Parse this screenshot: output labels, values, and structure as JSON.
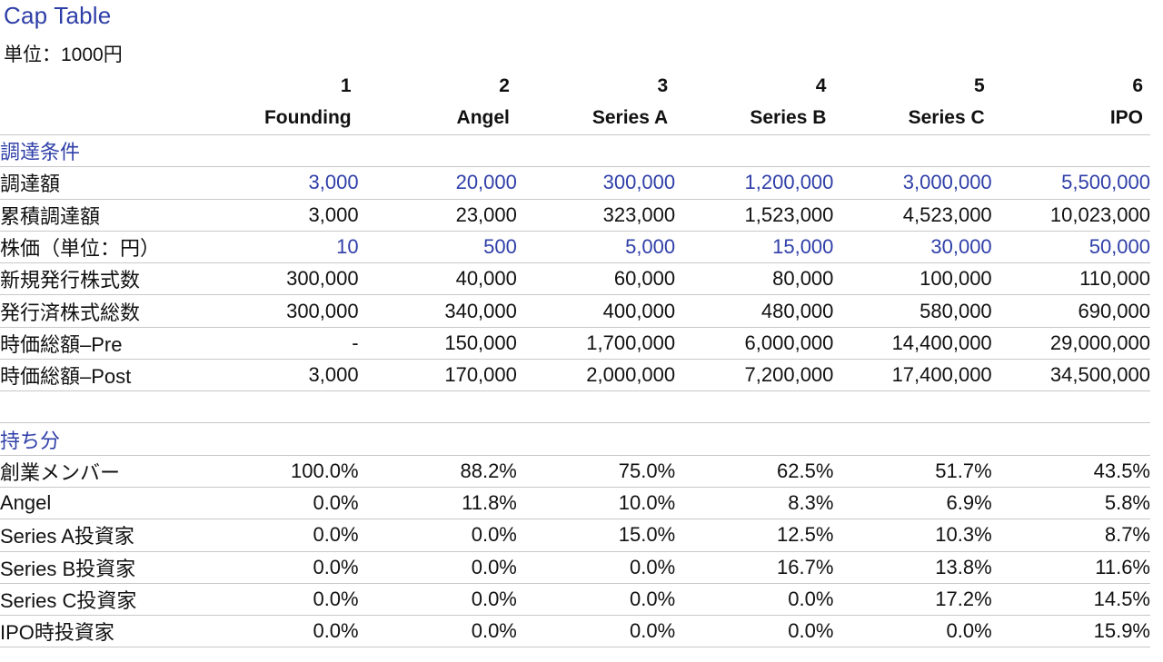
{
  "title": "Cap Table",
  "unit": "単位：1000円",
  "colors": {
    "accent": "#2f3fa8",
    "text": "#111111",
    "rule": "#c8c8c8"
  },
  "rounds": [
    {
      "num": "1",
      "name": "Founding"
    },
    {
      "num": "2",
      "name": "Angel"
    },
    {
      "num": "3",
      "name": "Series A"
    },
    {
      "num": "4",
      "name": "Series B"
    },
    {
      "num": "5",
      "name": "Series C"
    },
    {
      "num": "6",
      "name": "IPO"
    }
  ],
  "funding": {
    "section": "調達条件",
    "rows": [
      {
        "label": "調達額",
        "highlight": true,
        "values": [
          "3,000",
          "20,000",
          "300,000",
          "1,200,000",
          "3,000,000",
          "5,500,000"
        ]
      },
      {
        "label": "累積調達額",
        "highlight": false,
        "values": [
          "3,000",
          "23,000",
          "323,000",
          "1,523,000",
          "4,523,000",
          "10,023,000"
        ]
      },
      {
        "label": "株価（単位：円）",
        "highlight": true,
        "values": [
          "10",
          "500",
          "5,000",
          "15,000",
          "30,000",
          "50,000"
        ]
      },
      {
        "label": "新規発行株式数",
        "highlight": false,
        "values": [
          "300,000",
          "40,000",
          "60,000",
          "80,000",
          "100,000",
          "110,000"
        ]
      },
      {
        "label": "発行済株式総数",
        "highlight": false,
        "values": [
          "300,000",
          "340,000",
          "400,000",
          "480,000",
          "580,000",
          "690,000"
        ]
      },
      {
        "label": "時価総額–Pre",
        "highlight": false,
        "values": [
          "-",
          "150,000",
          "1,700,000",
          "6,000,000",
          "14,400,000",
          "29,000,000"
        ]
      },
      {
        "label": "時価総額–Post",
        "highlight": false,
        "values": [
          "3,000",
          "170,000",
          "2,000,000",
          "7,200,000",
          "17,400,000",
          "34,500,000"
        ]
      }
    ]
  },
  "ownership": {
    "section": "持ち分",
    "rows": [
      {
        "label": "創業メンバー",
        "values": [
          "100.0%",
          "88.2%",
          "75.0%",
          "62.5%",
          "51.7%",
          "43.5%"
        ]
      },
      {
        "label": "Angel",
        "values": [
          "0.0%",
          "11.8%",
          "10.0%",
          "8.3%",
          "6.9%",
          "5.8%"
        ]
      },
      {
        "label": "Series A投資家",
        "values": [
          "0.0%",
          "0.0%",
          "15.0%",
          "12.5%",
          "10.3%",
          "8.7%"
        ]
      },
      {
        "label": "Series B投資家",
        "values": [
          "0.0%",
          "0.0%",
          "0.0%",
          "16.7%",
          "13.8%",
          "11.6%"
        ]
      },
      {
        "label": "Series C投資家",
        "values": [
          "0.0%",
          "0.0%",
          "0.0%",
          "0.0%",
          "17.2%",
          "14.5%"
        ]
      },
      {
        "label": "IPO時投資家",
        "values": [
          "0.0%",
          "0.0%",
          "0.0%",
          "0.0%",
          "0.0%",
          "15.9%"
        ]
      }
    ]
  }
}
